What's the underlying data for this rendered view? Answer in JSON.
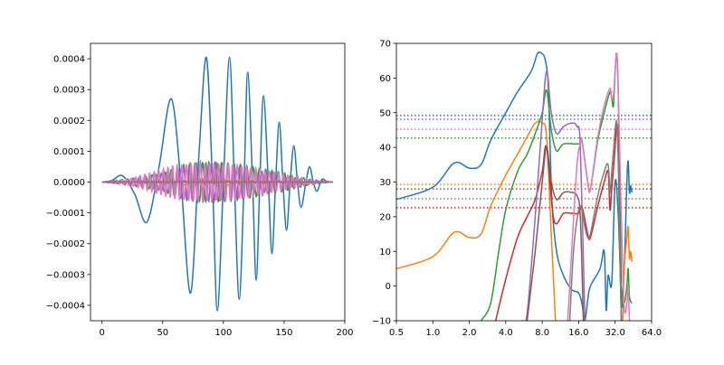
{
  "chart_data": [
    {
      "type": "line",
      "xlim": [
        -9.5,
        200
      ],
      "ylim": [
        -0.00045,
        0.00045
      ],
      "xticks": [
        0,
        50,
        100,
        150,
        200
      ],
      "xtick_labels": [
        "0",
        "50",
        "100",
        "150",
        "200"
      ],
      "yticks": [
        0.0004,
        0.0003,
        0.0002,
        0.0001,
        0,
        -0.0001,
        -0.0002,
        -0.0003,
        -0.0004
      ],
      "ytick_labels": [
        "0.0004",
        "0.0003",
        "0.0002",
        "0.0001",
        "0.0000",
        "−0.0001",
        "−0.0002",
        "−0.0003",
        "−0.0004"
      ],
      "grid": false,
      "series": [
        {
          "color": "#1f77b4",
          "x": [
            0,
            8,
            17,
            27,
            37,
            47,
            57,
            65,
            73,
            80,
            86,
            91,
            95,
            100,
            105,
            109,
            113,
            117,
            120,
            124,
            127,
            130,
            133,
            137,
            140,
            143,
            146,
            149,
            152,
            155,
            158,
            161,
            164,
            168,
            171,
            174,
            177,
            180,
            182,
            186,
            190
          ],
          "y": [
            0,
            5e-06,
            2e-05,
            -4e-05,
            -0.00013,
            5e-05,
            0.00027,
            0.0,
            -0.00036,
            0.0001,
            0.000404,
            0.0,
            -0.000418,
            0.0,
            0.000405,
            0.0,
            -0.00038,
            0.0,
            0.000356,
            0.0,
            -0.000318,
            0.0,
            0.00028,
            0.0,
            -0.000232,
            0.0,
            0.000194,
            0.0,
            -0.000156,
            0.0,
            0.000118,
            0.0,
            -8.2e-05,
            0.0,
            5e-05,
            0.0,
            -3e-05,
            0.0,
            1e-05,
            0,
            0
          ]
        },
        {
          "color": "#ff7f0e",
          "oscillation": true,
          "period": 9,
          "envelope_x": [
            0,
            20,
            50,
            80,
            100,
            130,
            160,
            190
          ],
          "envelope_y": [
            0,
            3e-06,
            1e-05,
            1.2e-05,
            1.2e-05,
            8e-06,
            3e-06,
            0
          ]
        },
        {
          "color": "#2ca02c",
          "oscillation": true,
          "period": 5.2,
          "envelope_x": [
            0,
            20,
            50,
            70,
            90,
            110,
            130,
            150,
            170,
            190
          ],
          "envelope_y": [
            0,
            8e-06,
            3e-05,
            6e-05,
            6.5e-05,
            6e-05,
            4.5e-05,
            3e-05,
            1e-05,
            0
          ]
        },
        {
          "color": "#d62728",
          "oscillation": true,
          "period": 7,
          "envelope_x": [
            0,
            30,
            80,
            120,
            190
          ],
          "envelope_y": [
            0,
            3e-06,
            5e-06,
            4e-06,
            0
          ]
        },
        {
          "color": "#9467bd",
          "oscillation": true,
          "period": 4.6,
          "envelope_x": [
            0,
            20,
            40,
            60,
            80,
            100,
            120,
            150,
            175,
            190
          ],
          "envelope_y": [
            0,
            1e-05,
            2e-05,
            4e-05,
            6.5e-05,
            6e-05,
            4.5e-05,
            2e-05,
            5e-06,
            0
          ]
        },
        {
          "color": "#8c564b",
          "oscillation": true,
          "period": 6,
          "envelope_x": [
            0,
            40,
            100,
            190
          ],
          "envelope_y": [
            0,
            3e-06,
            4e-06,
            0
          ]
        },
        {
          "color": "#e377c2",
          "oscillation": true,
          "period": 3.8,
          "envelope_x": [
            0,
            20,
            40,
            60,
            80,
            100,
            120,
            150,
            175,
            190
          ],
          "envelope_y": [
            0,
            8e-06,
            3e-05,
            5.5e-05,
            6e-05,
            6e-05,
            5e-05,
            2.5e-05,
            6e-06,
            0
          ]
        },
        {
          "color": "#7f7f7f",
          "x": [
            0,
            190
          ],
          "y": [
            0,
            0
          ]
        }
      ]
    },
    {
      "type": "line",
      "xscale": "log2",
      "xlim": [
        0.5,
        64
      ],
      "ylim": [
        -10,
        70
      ],
      "xticks": [
        0.5,
        1,
        2,
        4,
        8,
        16,
        32,
        64
      ],
      "xtick_labels": [
        "0.5",
        "1.0",
        "2.0",
        "4.0",
        "8.0",
        "16.0",
        "32.0",
        "64.0"
      ],
      "yticks": [
        70,
        60,
        50,
        40,
        30,
        20,
        10,
        0,
        -10
      ],
      "ytick_labels": [
        "70",
        "60",
        "50",
        "40",
        "30",
        "20",
        "10",
        "0",
        "−10"
      ],
      "grid": false,
      "series": [
        {
          "color": "#1f77b4",
          "x": [
            0.5,
            1,
            1.5,
            2,
            2.5,
            3,
            4,
            5,
            6.5,
            7.3,
            8,
            8.5,
            9,
            9.6,
            10.5,
            12,
            14,
            16,
            17,
            18,
            19,
            20,
            24,
            26,
            27,
            28,
            30,
            32,
            34,
            36,
            38,
            40,
            41,
            42,
            43,
            44
          ],
          "y": [
            25,
            28.5,
            35.5,
            34,
            35,
            42,
            50,
            56,
            62,
            67,
            67,
            65,
            57,
            25,
            10,
            3,
            -1,
            -2,
            -5,
            -10,
            -4,
            0,
            5,
            10,
            -7,
            3,
            1,
            30,
            20,
            -3,
            5,
            30,
            36,
            27,
            29,
            27
          ]
        },
        {
          "color": "#ff7f0e",
          "x": [
            0.5,
            1,
            1.5,
            2,
            2.5,
            3,
            4,
            5,
            6,
            7,
            8,
            8.7,
            9.5,
            10.3
          ],
          "y": [
            5,
            8.5,
            15.5,
            14,
            15,
            23,
            32,
            38,
            43,
            47,
            47,
            43,
            15,
            -10
          ]
        },
        {
          "color": "#ff7f0e",
          "x": [
            37,
            38,
            40,
            41,
            42,
            43,
            44
          ],
          "y": [
            -10,
            5,
            14,
            17,
            8,
            10,
            7
          ]
        },
        {
          "color": "#2ca02c",
          "x": [
            2.5,
            3,
            3.5,
            4,
            5,
            6,
            7,
            8,
            8.7,
            9.5,
            10.5,
            12,
            16,
            17,
            19,
            20,
            23,
            26,
            29,
            30,
            31,
            32,
            33,
            34,
            36,
            38,
            40,
            41,
            42,
            44
          ],
          "y": [
            -10,
            -5,
            10,
            22,
            33,
            38,
            44,
            50,
            56.5,
            45,
            39,
            41,
            41,
            42,
            30,
            28,
            42,
            50,
            56,
            54,
            52,
            62,
            67,
            55,
            0,
            -5,
            0,
            5,
            -3,
            -5
          ]
        },
        {
          "color": "#d62728",
          "x": [
            3.3,
            4,
            5,
            6,
            7,
            8,
            8.7,
            10,
            12,
            14,
            16,
            17,
            19,
            20,
            23,
            26,
            28,
            29,
            30,
            32,
            33,
            34,
            35,
            36
          ],
          "y": [
            -10,
            2,
            14,
            20,
            25,
            33,
            40,
            19,
            21,
            21,
            21,
            23,
            15,
            14,
            23,
            30,
            33,
            22,
            28,
            40,
            47,
            40,
            10,
            -10
          ]
        },
        {
          "color": "#9467bd",
          "x": [
            5.5,
            6,
            7,
            8,
            8.7,
            9.5,
            10.5,
            12,
            14,
            15.5,
            16.5,
            18
          ],
          "y": [
            -10,
            -8,
            20,
            48,
            62,
            50,
            44,
            46,
            47,
            46,
            40,
            -10
          ]
        },
        {
          "color": "#8c564b",
          "x": [
            6,
            7,
            8,
            8.7,
            9.5,
            10.5,
            12,
            14,
            15.5,
            16.5,
            17.5
          ],
          "y": [
            -10,
            10,
            30,
            40,
            30,
            25,
            27,
            27,
            26,
            20,
            -10
          ]
        },
        {
          "color": "#e377c2",
          "x": [
            13,
            14,
            15.5,
            16.5,
            17,
            19,
            20,
            23,
            26,
            29,
            30,
            31,
            32,
            33,
            34,
            36,
            38,
            40,
            41,
            42
          ],
          "y": [
            -10,
            10,
            35,
            41,
            42,
            30,
            28,
            43,
            52,
            57,
            54,
            55,
            62,
            67,
            55,
            20,
            -6,
            -5,
            0,
            -10
          ]
        },
        {
          "color": "#7f7f7f",
          "x": [
            13.5,
            14.5,
            16,
            17,
            18,
            19,
            20,
            23,
            26,
            28,
            29,
            30,
            32,
            33,
            34,
            35,
            36
          ],
          "y": [
            -10,
            10,
            22,
            22,
            17,
            14,
            15,
            26,
            33,
            35,
            27,
            33,
            45,
            47,
            35,
            10,
            -10
          ]
        }
      ],
      "hlines": [
        {
          "color": "#1f77b4",
          "y": 49.2
        },
        {
          "color": "#9467bd",
          "y": 48.1
        },
        {
          "color": "#e377c2",
          "y": 45.2
        },
        {
          "color": "#2ca02c",
          "y": 42.7
        },
        {
          "color": "#ff7f0e",
          "y": 29.3
        },
        {
          "color": "#8c564b",
          "y": 28.0
        },
        {
          "color": "#7f7f7f",
          "y": 25.2
        },
        {
          "color": "#d62728",
          "y": 22.6
        }
      ]
    }
  ]
}
